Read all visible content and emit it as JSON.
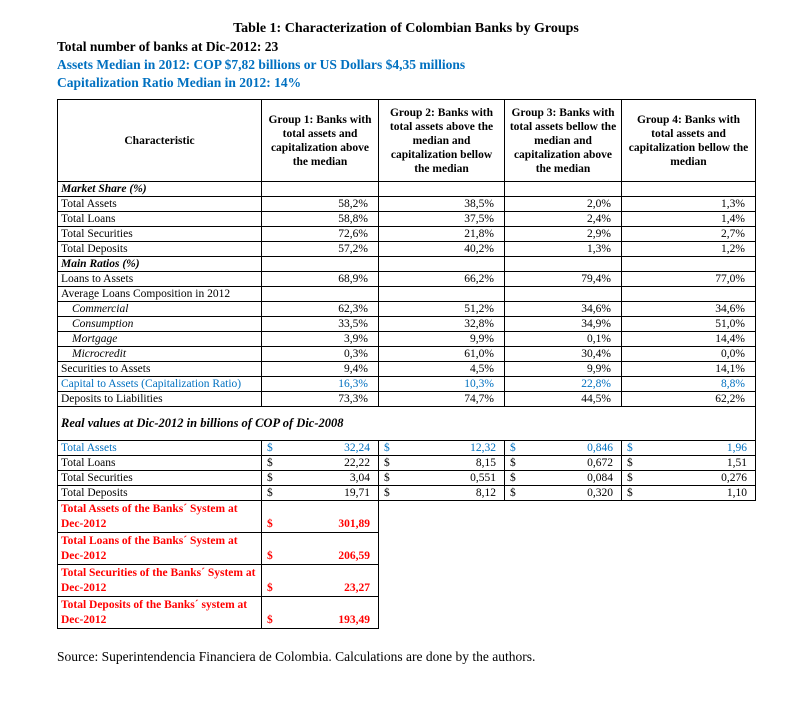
{
  "header": {
    "title": "Table 1: Characterization of Colombian Banks by Groups",
    "line1": "Total number of banks at Dic-2012: 23",
    "line2": "Assets Median in 2012: COP $7,82 billions or US Dollars $4,35 millions",
    "line3": "Capitalization Ratio Median in 2012: 14%"
  },
  "colors": {
    "accent_blue": "#0070C0",
    "accent_red": "#FF0000"
  },
  "currency_symbol": "$",
  "table": {
    "column_headers": [
      "Characteristic",
      "Group 1: Banks with total assets and capitalization above the median",
      "Group 2: Banks with total assets above the median and capitalization bellow the median",
      "Group 3: Banks with total assets bellow the median and capitalization above the median",
      "Group 4: Banks with total assets and capitalization bellow the median"
    ],
    "rows": [
      {
        "kind": "section",
        "label": "Market Share (%)"
      },
      {
        "kind": "percent",
        "label": "Total Assets",
        "values": [
          "58,2%",
          "38,5%",
          "2,0%",
          "1,3%"
        ]
      },
      {
        "kind": "percent",
        "label": "Total Loans",
        "values": [
          "58,8%",
          "37,5%",
          "2,4%",
          "1,4%"
        ]
      },
      {
        "kind": "percent",
        "label": "Total Securities",
        "values": [
          "72,6%",
          "21,8%",
          "2,9%",
          "2,7%"
        ]
      },
      {
        "kind": "percent",
        "label": "Total Deposits",
        "values": [
          "57,2%",
          "40,2%",
          "1,3%",
          "1,2%"
        ]
      },
      {
        "kind": "section",
        "label": "Main Ratios (%)"
      },
      {
        "kind": "percent",
        "label": "Loans to Assets",
        "values": [
          "68,9%",
          "66,2%",
          "79,4%",
          "77,0%"
        ]
      },
      {
        "kind": "plain",
        "label": "Average Loans Composition in 2012"
      },
      {
        "kind": "percent_italic",
        "label": "Commercial",
        "values": [
          "62,3%",
          "51,2%",
          "34,6%",
          "34,6%"
        ]
      },
      {
        "kind": "percent_italic",
        "label": "Consumption",
        "values": [
          "33,5%",
          "32,8%",
          "34,9%",
          "51,0%"
        ]
      },
      {
        "kind": "percent_italic",
        "label": "Mortgage",
        "values": [
          "3,9%",
          "9,9%",
          "0,1%",
          "14,4%"
        ]
      },
      {
        "kind": "percent_italic",
        "label": "Microcredit",
        "values": [
          "0,3%",
          "61,0%",
          "30,4%",
          "0,0%"
        ]
      },
      {
        "kind": "percent",
        "label": "Securities to Assets",
        "values": [
          "9,4%",
          "4,5%",
          "9,9%",
          "14,1%"
        ]
      },
      {
        "kind": "percent",
        "label": "Capital to Assets (Capitalization Ratio)",
        "values": [
          "16,3%",
          "10,3%",
          "22,8%",
          "8,8%"
        ],
        "color": "blue"
      },
      {
        "kind": "percent",
        "label": "Deposits to Liabilities",
        "values": [
          "73,3%",
          "74,7%",
          "44,5%",
          "62,2%"
        ]
      },
      {
        "kind": "gap",
        "label": "Real values at Dic-2012 in billions of COP of Dic-2008"
      },
      {
        "kind": "currency",
        "label": "Total Assets",
        "values": [
          "32,24",
          "12,32",
          "0,846",
          "1,96"
        ],
        "color": "blue"
      },
      {
        "kind": "currency",
        "label": "Total Loans",
        "values": [
          "22,22",
          "8,15",
          "0,672",
          "1,51"
        ]
      },
      {
        "kind": "currency",
        "label": "Total Securities",
        "values": [
          "3,04",
          "0,551",
          "0,084",
          "0,276"
        ]
      },
      {
        "kind": "currency",
        "label": "Total Deposits",
        "values": [
          "19,71",
          "8,12",
          "0,320",
          "1,10"
        ]
      },
      {
        "kind": "red",
        "label": "Total Assets of the Banks´ System at Dec-2012",
        "value": "301,89"
      },
      {
        "kind": "red",
        "label": "Total Loans of the Banks´ System at Dec-2012",
        "value": "206,59"
      },
      {
        "kind": "red",
        "label": "Total Securities of the Banks´ System at Dec-2012",
        "value": "23,27"
      },
      {
        "kind": "red",
        "label": "Total Deposits of the Banks´ system at Dec-2012",
        "value": "193,49"
      }
    ]
  },
  "footer": {
    "source": "Source: Superintendencia Financiera de Colombia. Calculations are done by the authors."
  }
}
